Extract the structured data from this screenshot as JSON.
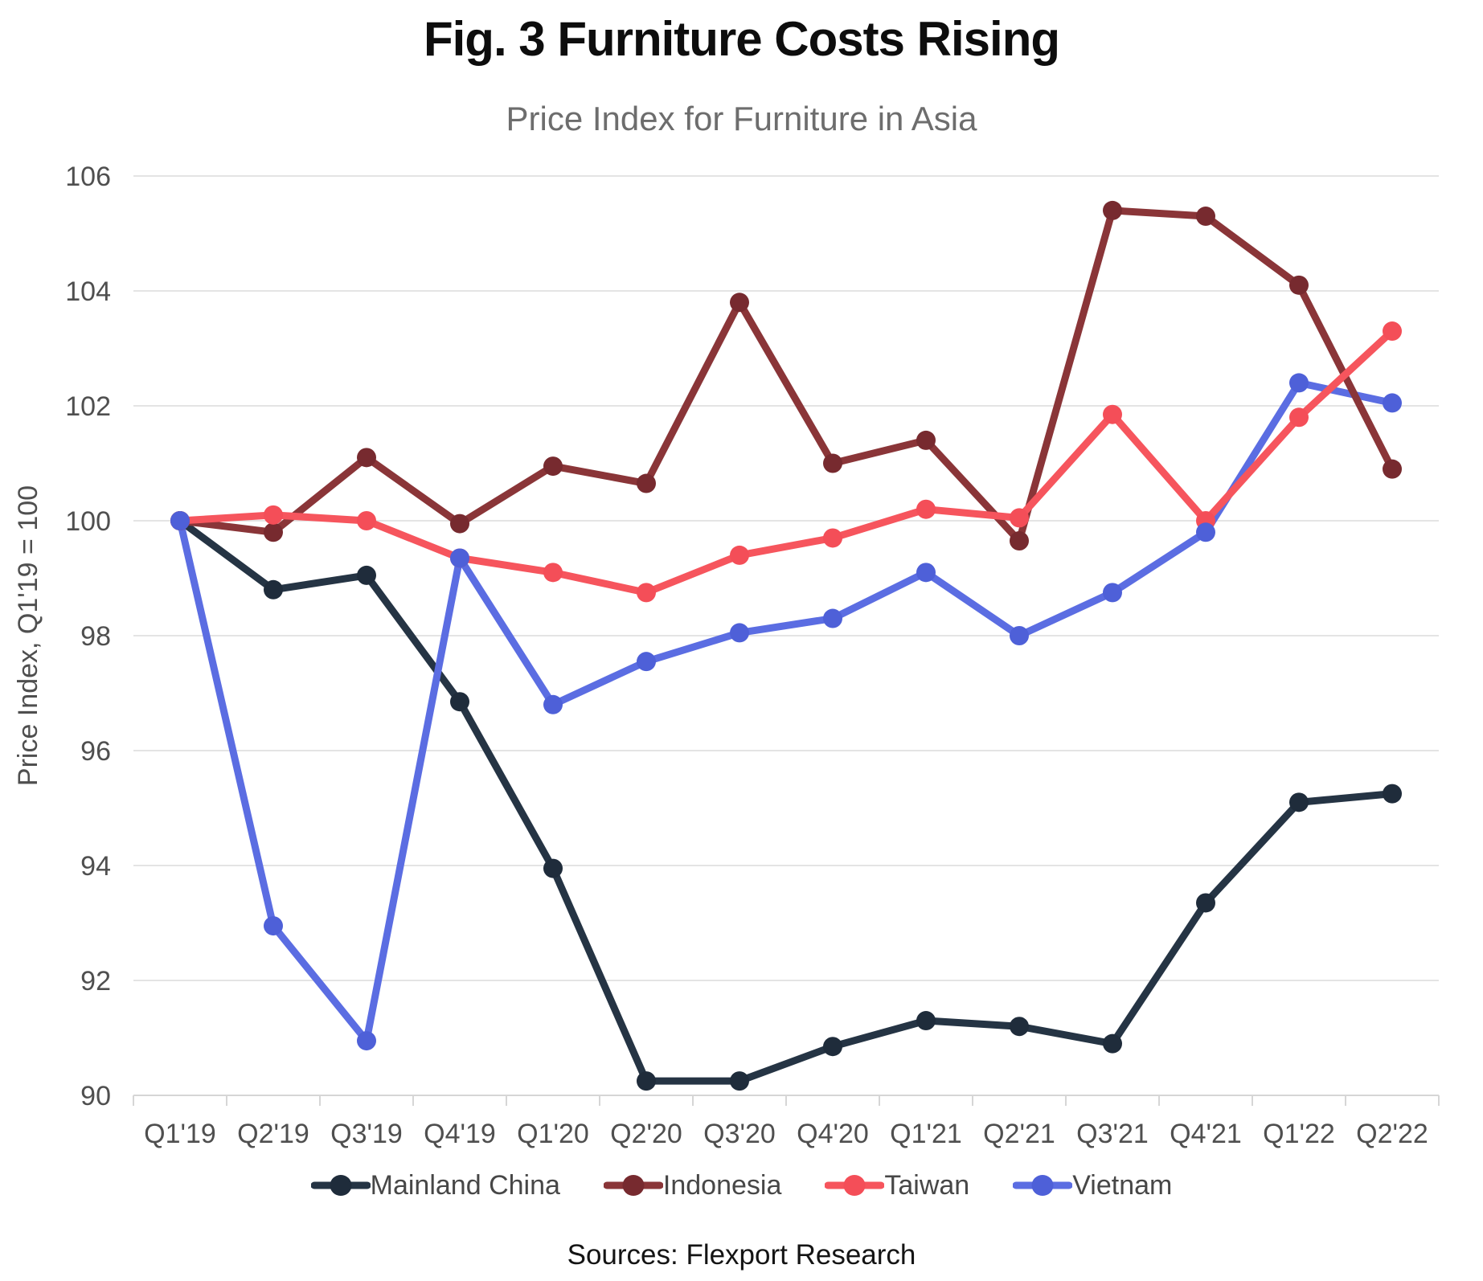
{
  "page": {
    "title": "Fig. 3 Furniture Costs Rising",
    "subtitle": "Price Index for Furniture in Asia",
    "source": "Sources: Flexport Research"
  },
  "chart_data": {
    "type": "line",
    "title": "Fig. 3 Furniture Costs Rising",
    "subtitle": "Price Index for Furniture in Asia",
    "xlabel": "",
    "ylabel": "Price Index, Q1'19 = 100",
    "source": "Sources: Flexport Research",
    "ylim": [
      90,
      106
    ],
    "yticks": [
      90,
      92,
      94,
      96,
      98,
      100,
      102,
      104,
      106
    ],
    "grid": "horizontal",
    "legend_position": "bottom",
    "categories": [
      "Q1'19",
      "Q2'19",
      "Q3'19",
      "Q4'19",
      "Q1'20",
      "Q2'20",
      "Q3'20",
      "Q4'20",
      "Q1'21",
      "Q2'21",
      "Q3'21",
      "Q4'21",
      "Q1'22",
      "Q2'22"
    ],
    "series": [
      {
        "name": "Mainland China",
        "color": "#253444",
        "marker_color": "#1f2c3b",
        "values": [
          100,
          98.8,
          99.05,
          96.85,
          93.95,
          90.25,
          90.25,
          90.85,
          91.3,
          91.2,
          90.9,
          93.35,
          95.1,
          95.25
        ]
      },
      {
        "name": "Indonesia",
        "color": "#8a3538",
        "marker_color": "#772a2f",
        "values": [
          100,
          99.8,
          101.1,
          99.95,
          100.95,
          100.65,
          103.8,
          101.0,
          101.4,
          99.65,
          105.4,
          105.3,
          104.1,
          100.9
        ]
      },
      {
        "name": "Taiwan",
        "color": "#f6555d",
        "marker_color": "#f44e58",
        "values": [
          100,
          100.1,
          100.0,
          99.35,
          99.1,
          98.75,
          99.4,
          99.7,
          100.2,
          100.05,
          101.85,
          100.0,
          101.8,
          103.3
        ]
      },
      {
        "name": "Vietnam",
        "color": "#5b6de2",
        "marker_color": "#4e60d8",
        "values": [
          100,
          92.95,
          90.95,
          99.35,
          96.8,
          97.55,
          98.05,
          98.3,
          99.1,
          98.0,
          98.75,
          99.8,
          102.4,
          102.05
        ]
      }
    ]
  }
}
